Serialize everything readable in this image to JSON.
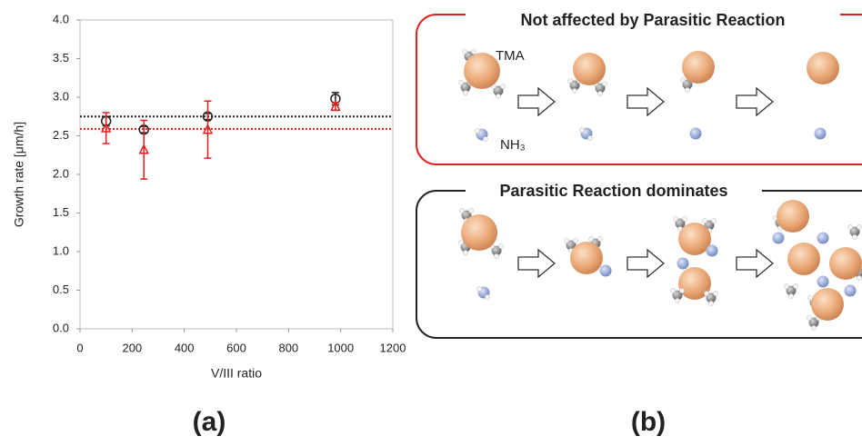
{
  "chart_data": {
    "type": "scatter",
    "x_label": "V/III ratio",
    "y_label": "Growth rate [μm/h]",
    "xlim": [
      0,
      1200
    ],
    "xticks": [
      0,
      200,
      400,
      600,
      800,
      1000,
      1200
    ],
    "ylim": [
      0,
      4
    ],
    "yticks": [
      {
        "value": 0,
        "label": "0.0"
      },
      0.5,
      {
        "value": 1,
        "label": "1.0"
      },
      1.5,
      {
        "value": 2,
        "label": "2.0"
      },
      2.5,
      {
        "value": 3,
        "label": "3.0"
      },
      3.5,
      {
        "value": 4,
        "label": "4.0"
      }
    ],
    "series": [
      {
        "color": "#222222",
        "marker": "circle",
        "x": [
          100,
          245,
          490,
          980
        ],
        "values": [
          2.69,
          2.58,
          2.75,
          2.98
        ],
        "errors": [
          0.06,
          0.04,
          0.04,
          0.08
        ]
      },
      {
        "color": "#e02020",
        "marker": "triangle",
        "x": [
          100,
          245,
          490,
          980
        ],
        "values": [
          2.6,
          2.32,
          2.58,
          2.88
        ],
        "errors": [
          0.2,
          0.38,
          0.37,
          0.05
        ]
      }
    ],
    "reference_lines": [
      {
        "value": 2.75,
        "color": "#222222"
      },
      {
        "value": 2.59,
        "color": "#e02020"
      }
    ],
    "panel_label": "(a)"
  },
  "diagram": {
    "panel_label": "(b)",
    "top_box": {
      "title": "Not affected by Parasitic Reaction",
      "tma_label": "TMA",
      "nh3_label": "NH₃"
    },
    "bottom_box": {
      "title": "Parasitic Reaction dominates"
    }
  }
}
